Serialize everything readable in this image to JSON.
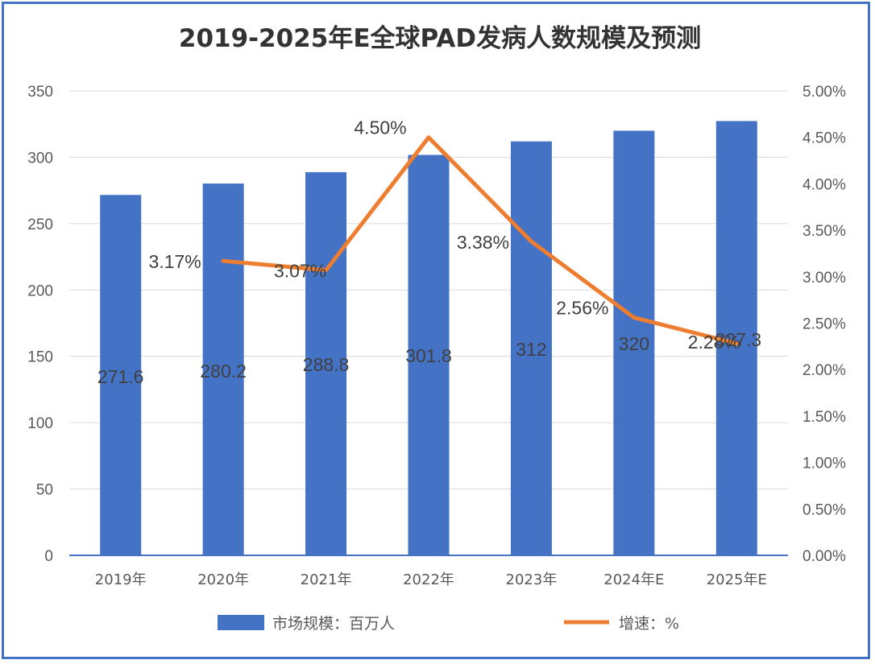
{
  "chart_data": {
    "type": "bar",
    "title": "2019-2025年E全球PAD发病人数规模及预测",
    "categories": [
      "2019年",
      "2020年",
      "2021年",
      "2022年",
      "2023年",
      "2024年E",
      "2025年E"
    ],
    "series": [
      {
        "name": "市场规模：百万人",
        "type": "bar",
        "axis": "left",
        "values": [
          271.6,
          280.2,
          288.8,
          301.8,
          312,
          320,
          327.3
        ],
        "labels": [
          "271.6",
          "280.2",
          "288.8",
          "301.8",
          "312",
          "320",
          "327.3"
        ]
      },
      {
        "name": "增速：%",
        "type": "line",
        "axis": "right",
        "values": [
          null,
          3.17,
          3.07,
          4.5,
          3.38,
          2.56,
          2.28
        ],
        "labels": [
          "",
          "3.17%",
          "3.07%",
          "4.50%",
          "3.38%",
          "2.56%",
          "2.28%"
        ]
      }
    ],
    "ylim_left": [
      0,
      350
    ],
    "yticks_left": [
      "0",
      "50",
      "100",
      "150",
      "200",
      "250",
      "300",
      "350"
    ],
    "ylim_right": [
      0,
      5
    ],
    "yticks_right": [
      "0.00%",
      "0.50%",
      "1.00%",
      "1.50%",
      "2.00%",
      "2.50%",
      "3.00%",
      "3.50%",
      "4.00%",
      "4.50%",
      "5.00%"
    ],
    "grid": true,
    "legend": "bottom",
    "colors": {
      "bar": "#4472c4",
      "line": "#ed7d31",
      "frame": "#4472c4"
    }
  }
}
